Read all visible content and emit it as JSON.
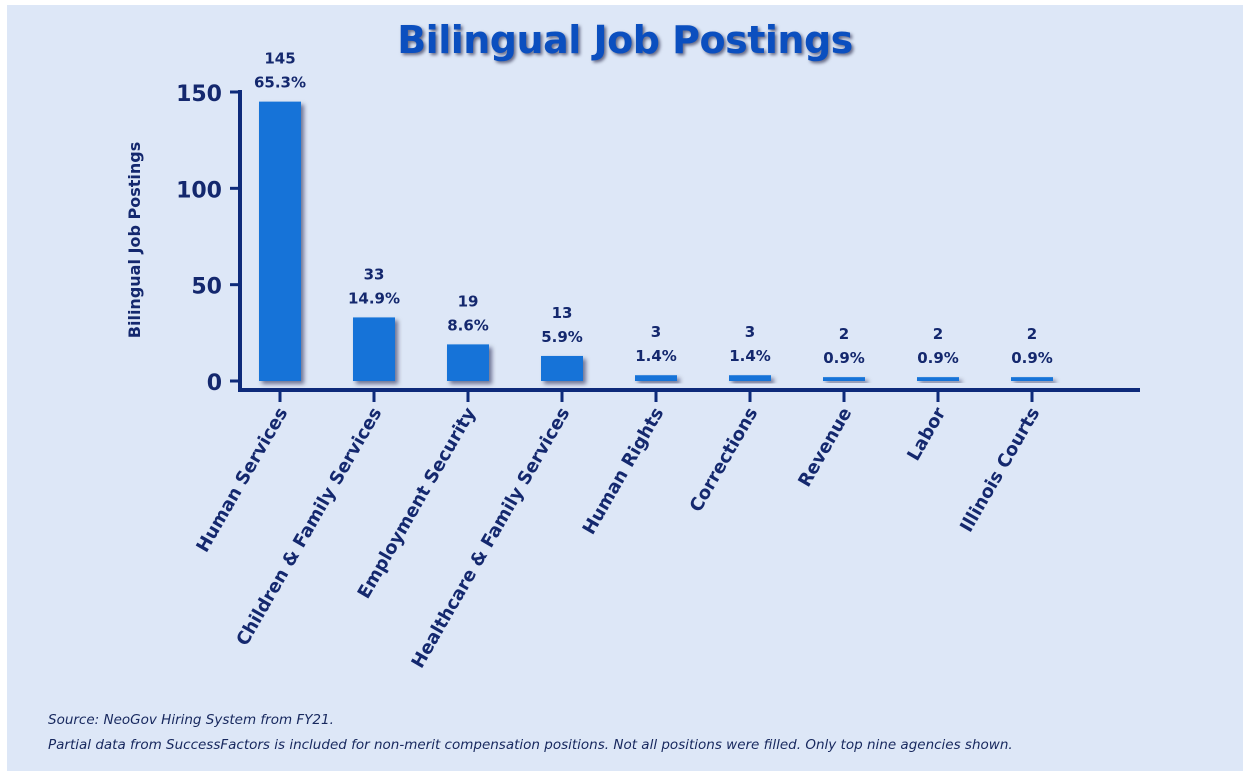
{
  "chart_data": {
    "type": "bar",
    "title": "Bilingual Job Postings",
    "ylabel": "Bilingual Job Postings",
    "xlabel": "",
    "ylim": [
      0,
      150
    ],
    "yticks": [
      0,
      50,
      100,
      150
    ],
    "categories": [
      "Human Services",
      "Children & Family Services",
      "Employment Security",
      "Healthcare & Family Services",
      "Human Rights",
      "Corrections",
      "Revenue",
      "Labor",
      "Illinois Courts"
    ],
    "values": [
      145,
      33,
      19,
      13,
      3,
      3,
      2,
      2,
      2
    ],
    "percent_labels": [
      "65.3%",
      "14.9%",
      "8.6%",
      "5.9%",
      "1.4%",
      "1.4%",
      "0.9%",
      "0.9%",
      "0.9%"
    ],
    "grid": false,
    "legend": "none",
    "colors": {
      "bar": "#1473d8",
      "axis": "#0d2a7a",
      "text": "#14286e",
      "title": "#0b4fbf",
      "background": "#dde7f7"
    }
  },
  "footnotes": {
    "source": "Source: NeoGov Hiring System from FY21.",
    "note": "Partial data from SuccessFactors is included for non-merit compensation positions. Not all positions were filled. Only top nine agencies shown."
  }
}
